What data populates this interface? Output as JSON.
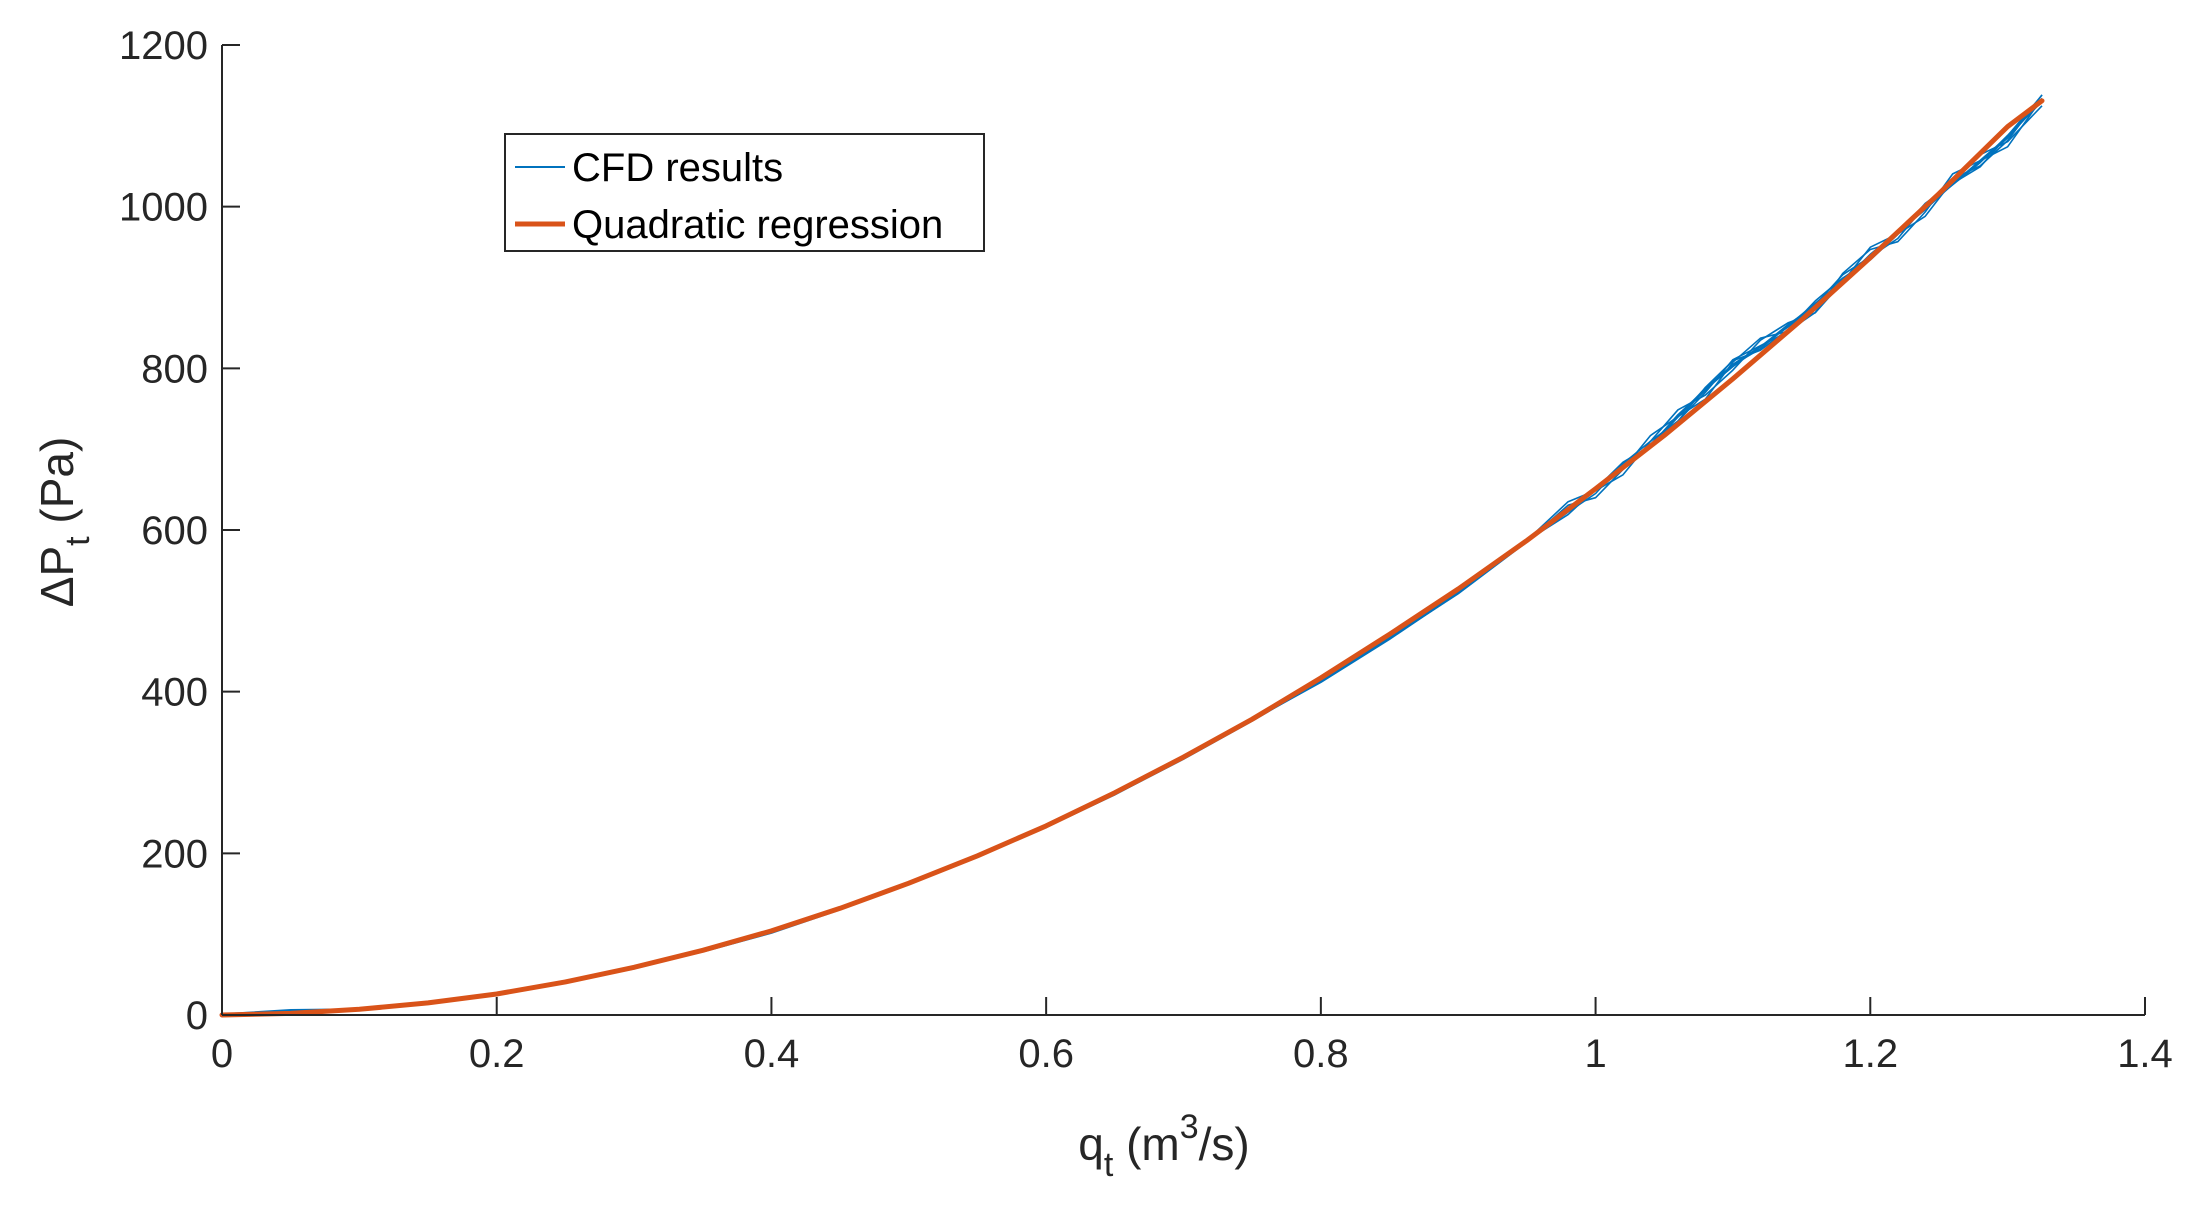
{
  "chart_data": {
    "type": "line",
    "xlabel": {
      "main": "q",
      "sub": "t",
      "pre_sup": " (m",
      "sup": "3",
      "post": "/s)"
    },
    "ylabel": {
      "main": "ΔP",
      "sub": "t",
      "post": " (Pa)"
    },
    "xlim": [
      0,
      1.4
    ],
    "ylim": [
      0,
      1200
    ],
    "xticks": [
      0,
      0.2,
      0.4,
      0.6,
      0.8,
      1,
      1.2,
      1.4
    ],
    "xtick_labels": [
      "0",
      "0.2",
      "0.4",
      "0.6",
      "0.8",
      "1",
      "1.2",
      "1.4"
    ],
    "yticks": [
      0,
      200,
      400,
      600,
      800,
      1000,
      1200
    ],
    "ytick_labels": [
      "0",
      "200",
      "400",
      "600",
      "800",
      "1000",
      "1200"
    ],
    "grid": false,
    "legend_position": "top-left",
    "series": [
      {
        "name": "CFD results",
        "color": "#0072BD",
        "x": [
          0,
          0.05,
          0.1,
          0.15,
          0.2,
          0.25,
          0.3,
          0.35,
          0.4,
          0.45,
          0.5,
          0.55,
          0.6,
          0.65,
          0.7,
          0.75,
          0.8,
          0.85,
          0.9,
          0.95,
          0.98,
          1.0,
          1.02,
          1.04,
          1.06,
          1.08,
          1.1,
          1.12,
          1.14,
          1.16,
          1.18,
          1.2,
          1.22,
          1.24,
          1.26,
          1.28,
          1.3,
          1.325
        ],
        "y": [
          0,
          5,
          7,
          15,
          26,
          41,
          58,
          79,
          103,
          131,
          163,
          196,
          233,
          273,
          318,
          365,
          413,
          466,
          522,
          586,
          625,
          650,
          678,
          706,
          740,
          773,
          805,
          827,
          851,
          878,
          910,
          940,
          966,
          998,
          1030,
          1055,
          1085,
          1133
        ]
      },
      {
        "name": "Quadratic regression",
        "color": "#D95319",
        "x": [
          0,
          0.05,
          0.1,
          0.15,
          0.2,
          0.25,
          0.3,
          0.35,
          0.4,
          0.45,
          0.5,
          0.55,
          0.6,
          0.65,
          0.7,
          0.75,
          0.8,
          0.85,
          0.9,
          0.95,
          1.0,
          1.05,
          1.1,
          1.15,
          1.2,
          1.25,
          1.3,
          1.325
        ],
        "y": [
          0,
          2,
          7,
          15,
          26,
          41,
          59,
          80,
          104,
          132,
          163,
          197,
          234,
          275,
          319,
          366,
          417,
          471,
          527,
          587,
          651,
          717,
          787,
          860,
          937,
          1016,
          1099,
          1131
        ]
      }
    ]
  }
}
